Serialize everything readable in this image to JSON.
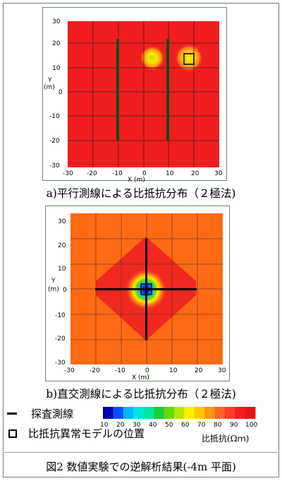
{
  "panel_a": {
    "caption": "a)平行測線による比抵抗分布（２極法)",
    "x_label": "X (m)",
    "y_label": [
      "Y",
      "(m)"
    ],
    "x_ticks": [
      "-30",
      "-20",
      "-10",
      "0",
      "10",
      "20",
      "30"
    ],
    "y_ticks": [
      "30",
      "20",
      "10",
      "0",
      "-10",
      "-20",
      "-30"
    ]
  },
  "panel_b": {
    "caption": "b)直交測線による比抵抗分布（２極法)",
    "x_label": "X (m)",
    "y_label": [
      "Y",
      "(m)"
    ],
    "x_ticks": [
      "-30",
      "-20",
      "-10",
      "0",
      "10",
      "20",
      "30"
    ],
    "y_ticks": [
      "30",
      "20",
      "10",
      "0",
      "-10",
      "-20",
      "-30"
    ]
  },
  "legend": {
    "survey_line": "探査測線",
    "anomaly_model": "比抵抗異常モデルの位置",
    "colorbar_ticks": [
      "10",
      "20",
      "30",
      "40",
      "50",
      "60",
      "70",
      "80",
      "90",
      "100"
    ],
    "colorbar_unit": "比抵抗(Ωｍ)",
    "colors": [
      "#0000b4",
      "#0050ff",
      "#00b4ff",
      "#00e6e6",
      "#00e6a0",
      "#14d23c",
      "#64dc00",
      "#b4e600",
      "#fff000",
      "#ffc800",
      "#ff9614",
      "#ff6428",
      "#ff3c28",
      "#f01e1e",
      "#e61414"
    ]
  },
  "figure_title": "図2 数値実験での逆解析結果(-4m 平面)"
}
